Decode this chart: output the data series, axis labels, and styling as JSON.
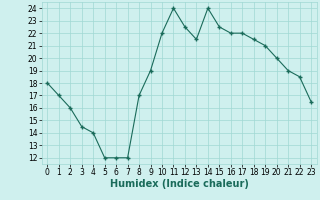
{
  "x": [
    0,
    1,
    2,
    3,
    4,
    5,
    6,
    7,
    8,
    9,
    10,
    11,
    12,
    13,
    14,
    15,
    16,
    17,
    18,
    19,
    20,
    21,
    22,
    23
  ],
  "y": [
    18,
    17,
    16,
    14.5,
    14,
    12,
    12,
    12,
    17,
    19,
    22,
    24,
    22.5,
    21.5,
    24,
    22.5,
    22,
    22,
    21.5,
    21,
    20,
    19,
    18.5,
    16.5
  ],
  "line_color": "#1a6b5a",
  "marker_color": "#1a6b5a",
  "bg_color": "#cff0ee",
  "grid_color": "#a0d8d4",
  "xlabel": "Humidex (Indice chaleur)",
  "ylim": [
    11.5,
    24.5
  ],
  "xlim": [
    -0.5,
    23.5
  ],
  "yticks": [
    12,
    13,
    14,
    15,
    16,
    17,
    18,
    19,
    20,
    21,
    22,
    23,
    24
  ],
  "xticks": [
    0,
    1,
    2,
    3,
    4,
    5,
    6,
    7,
    8,
    9,
    10,
    11,
    12,
    13,
    14,
    15,
    16,
    17,
    18,
    19,
    20,
    21,
    22,
    23
  ],
  "font_size_label": 7.0,
  "font_size_tick": 5.5
}
